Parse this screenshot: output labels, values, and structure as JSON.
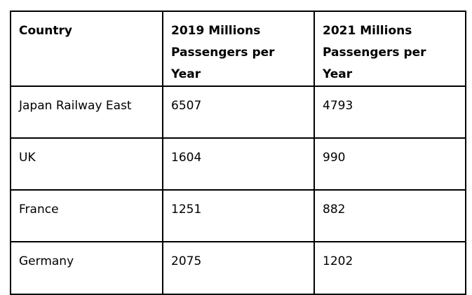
{
  "table": {
    "headers": [
      "Country",
      "2019 Millions Passengers per Year",
      "2021 Millions Passengers per Year"
    ],
    "rows": [
      [
        "Japan Railway East",
        "6507",
        "4793"
      ],
      [
        "UK",
        "1604",
        "990"
      ],
      [
        "France",
        "1251",
        "882"
      ],
      [
        "Germany",
        "2075",
        "1202"
      ]
    ]
  }
}
